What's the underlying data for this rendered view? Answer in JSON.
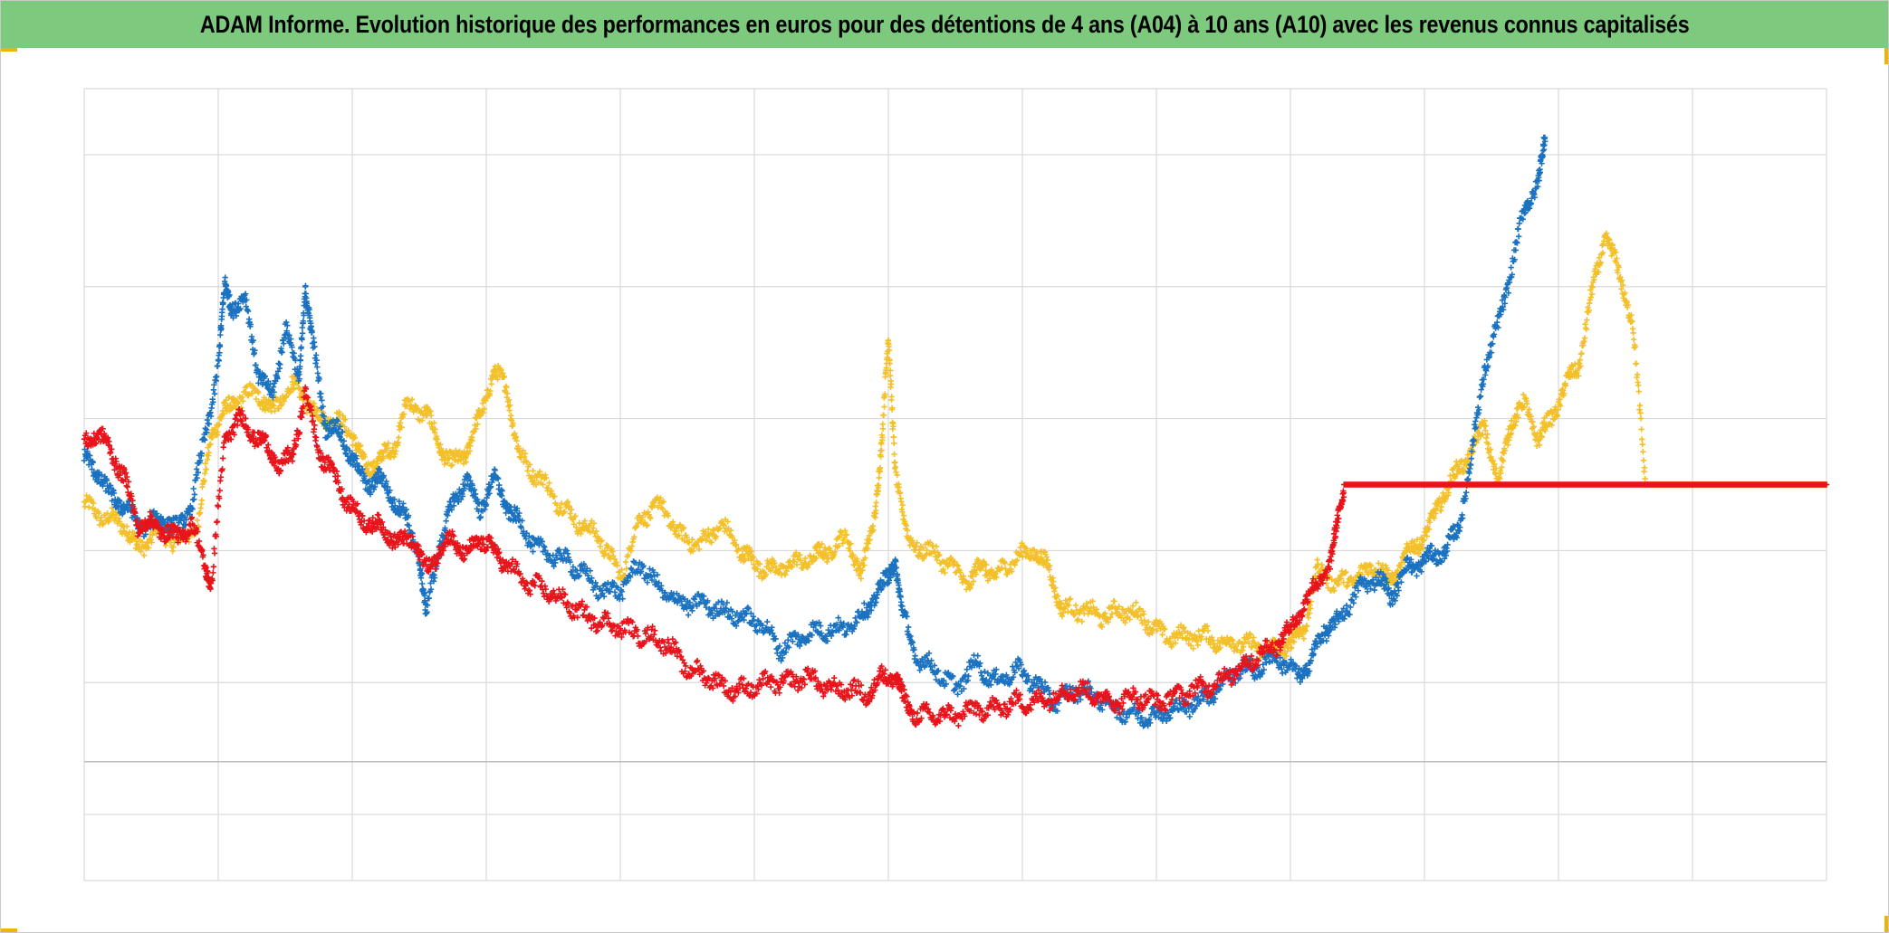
{
  "title": "ADAM Informe. Evolution historique des performances en euros pour des détentions de 4 ans (A04) à 10 ans (A10) avec les revenus connus capitalisés",
  "colors": {
    "title_background": "#7dc97d",
    "corner_accent": "#f2b400",
    "grid": "#d9d9d9"
  },
  "chart_data": {
    "type": "scatter",
    "marker": "plus",
    "title": "ADAM Informe. Evolution historique des performances en euros pour des détentions de 4 ans (A04) à 10 ans (A10) avec les revenus connus capitalisés",
    "xlabel": "",
    "ylabel": "",
    "xlim": [
      0,
      13
    ],
    "ylim": [
      -6,
      6
    ],
    "x_gridlines": 13,
    "y_gridlines": [
      -6,
      -5,
      -3,
      -1,
      1,
      3,
      5,
      6
    ],
    "zero_line": -4.2,
    "grid": true,
    "tick_labels_shown": false,
    "legend": "none",
    "series": [
      {
        "color": "#f4c02a",
        "points": [
          [
            0,
            -0.3
          ],
          [
            0.15,
            -0.5
          ],
          [
            0.3,
            -0.6
          ],
          [
            0.4,
            -1.0
          ],
          [
            0.55,
            -0.7
          ],
          [
            0.7,
            -0.9
          ],
          [
            0.85,
            -0.6
          ],
          [
            0.95,
            0.8
          ],
          [
            1.05,
            1.1
          ],
          [
            1.15,
            1.3
          ],
          [
            1.3,
            1.4
          ],
          [
            1.4,
            1.1
          ],
          [
            1.55,
            1.5
          ],
          [
            1.65,
            1.3
          ],
          [
            1.75,
            1.0
          ],
          [
            1.85,
            1.0
          ],
          [
            2.0,
            0.8
          ],
          [
            2.1,
            0.2
          ],
          [
            2.2,
            0.4
          ],
          [
            2.3,
            0.5
          ],
          [
            2.4,
            1.2
          ],
          [
            2.55,
            1.1
          ],
          [
            2.65,
            0.6
          ],
          [
            2.75,
            0.3
          ],
          [
            2.85,
            0.5
          ],
          [
            2.95,
            1.0
          ],
          [
            3.05,
            1.7
          ],
          [
            3.15,
            1.5
          ],
          [
            3.25,
            0.4
          ],
          [
            3.4,
            0.1
          ],
          [
            3.55,
            -0.3
          ],
          [
            3.7,
            -0.6
          ],
          [
            3.85,
            -0.8
          ],
          [
            4.0,
            -1.4
          ],
          [
            4.15,
            -0.5
          ],
          [
            4.3,
            -0.3
          ],
          [
            4.45,
            -0.8
          ],
          [
            4.6,
            -0.9
          ],
          [
            4.75,
            -0.6
          ],
          [
            4.9,
            -1.0
          ],
          [
            5.0,
            -1.2
          ],
          [
            5.15,
            -1.3
          ],
          [
            5.3,
            -1.2
          ],
          [
            5.45,
            -1.1
          ],
          [
            5.55,
            -1.0
          ],
          [
            5.7,
            -0.8
          ],
          [
            5.8,
            -1.4
          ],
          [
            5.9,
            -0.4
          ],
          [
            5.95,
            0.6
          ],
          [
            6.0,
            2.2
          ],
          [
            6.05,
            0.3
          ],
          [
            6.15,
            -0.9
          ],
          [
            6.3,
            -1.0
          ],
          [
            6.45,
            -1.2
          ],
          [
            6.6,
            -1.5
          ],
          [
            6.7,
            -1.2
          ],
          [
            6.8,
            -1.4
          ],
          [
            6.95,
            -1.1
          ],
          [
            7.1,
            -1.0
          ],
          [
            7.2,
            -1.3
          ],
          [
            7.3,
            -1.9
          ],
          [
            7.45,
            -1.9
          ],
          [
            7.6,
            -2.0
          ],
          [
            7.75,
            -1.9
          ],
          [
            7.9,
            -2.0
          ],
          [
            8.05,
            -2.3
          ],
          [
            8.2,
            -2.3
          ],
          [
            8.35,
            -2.3
          ],
          [
            8.5,
            -2.4
          ],
          [
            8.65,
            -2.4
          ],
          [
            8.8,
            -2.5
          ],
          [
            8.9,
            -2.5
          ],
          [
            9.0,
            -2.4
          ],
          [
            9.1,
            -2.2
          ],
          [
            9.2,
            -1.3
          ],
          [
            9.35,
            -1.5
          ],
          [
            9.5,
            -1.4
          ],
          [
            9.65,
            -1.2
          ],
          [
            9.75,
            -1.5
          ],
          [
            9.85,
            -1.1
          ],
          [
            9.95,
            -0.9
          ],
          [
            10.05,
            -0.6
          ],
          [
            10.15,
            -0.1
          ],
          [
            10.25,
            0.2
          ],
          [
            10.35,
            0.5
          ],
          [
            10.45,
            0.9
          ],
          [
            10.55,
            0.0
          ],
          [
            10.65,
            1.0
          ],
          [
            10.75,
            1.2
          ],
          [
            10.85,
            0.7
          ],
          [
            10.95,
            1.0
          ],
          [
            11.05,
            1.5
          ],
          [
            11.15,
            1.8
          ],
          [
            11.25,
            2.9
          ],
          [
            11.35,
            3.8
          ],
          [
            11.45,
            3.2
          ],
          [
            11.55,
            2.5
          ],
          [
            11.65,
            0.0
          ],
          [
            11.8,
            0.0
          ],
          [
            11.95,
            0.0
          ],
          [
            12.1,
            0.0
          ],
          [
            12.25,
            0.0
          ],
          [
            12.4,
            0.0
          ],
          [
            12.55,
            0.0
          ],
          [
            12.7,
            0.0
          ],
          [
            12.85,
            0.0
          ],
          [
            13.0,
            0.0
          ]
        ]
      },
      {
        "color": "#1a72c0",
        "points": [
          [
            0,
            0.4
          ],
          [
            0.1,
            0.2
          ],
          [
            0.2,
            -0.2
          ],
          [
            0.3,
            -0.3
          ],
          [
            0.4,
            -0.6
          ],
          [
            0.5,
            -0.6
          ],
          [
            0.6,
            -0.5
          ],
          [
            0.7,
            -0.7
          ],
          [
            0.8,
            -0.3
          ],
          [
            0.9,
            0.7
          ],
          [
            1.0,
            1.8
          ],
          [
            1.05,
            3.0
          ],
          [
            1.1,
            2.7
          ],
          [
            1.2,
            2.8
          ],
          [
            1.3,
            1.7
          ],
          [
            1.4,
            1.3
          ],
          [
            1.5,
            2.4
          ],
          [
            1.6,
            1.6
          ],
          [
            1.65,
            3.0
          ],
          [
            1.7,
            2.2
          ],
          [
            1.8,
            0.9
          ],
          [
            1.9,
            0.8
          ],
          [
            2.0,
            0.4
          ],
          [
            2.1,
            0.0
          ],
          [
            2.2,
            0.1
          ],
          [
            2.3,
            -0.2
          ],
          [
            2.4,
            -0.5
          ],
          [
            2.5,
            -1.1
          ],
          [
            2.55,
            -2.0
          ],
          [
            2.65,
            -0.9
          ],
          [
            2.75,
            -0.3
          ],
          [
            2.85,
            0.1
          ],
          [
            2.95,
            -0.4
          ],
          [
            3.05,
            0.1
          ],
          [
            3.15,
            -0.3
          ],
          [
            3.25,
            -0.6
          ],
          [
            3.4,
            -1.0
          ],
          [
            3.55,
            -1.1
          ],
          [
            3.7,
            -1.3
          ],
          [
            3.85,
            -1.6
          ],
          [
            4.0,
            -1.6
          ],
          [
            4.15,
            -1.2
          ],
          [
            4.3,
            -1.6
          ],
          [
            4.45,
            -1.8
          ],
          [
            4.6,
            -1.8
          ],
          [
            4.75,
            -1.9
          ],
          [
            4.9,
            -2.0
          ],
          [
            5.05,
            -2.1
          ],
          [
            5.2,
            -2.5
          ],
          [
            5.35,
            -2.3
          ],
          [
            5.5,
            -2.2
          ],
          [
            5.65,
            -2.2
          ],
          [
            5.8,
            -2.0
          ],
          [
            5.9,
            -1.7
          ],
          [
            6.0,
            -1.4
          ],
          [
            6.05,
            -1.1
          ],
          [
            6.1,
            -1.9
          ],
          [
            6.2,
            -2.6
          ],
          [
            6.35,
            -2.8
          ],
          [
            6.5,
            -3.1
          ],
          [
            6.65,
            -2.7
          ],
          [
            6.8,
            -3.0
          ],
          [
            6.95,
            -2.8
          ],
          [
            7.1,
            -3.0
          ],
          [
            7.25,
            -3.3
          ],
          [
            7.4,
            -3.1
          ],
          [
            7.55,
            -3.2
          ],
          [
            7.7,
            -3.4
          ],
          [
            7.85,
            -3.5
          ],
          [
            8.0,
            -3.5
          ],
          [
            8.15,
            -3.4
          ],
          [
            8.3,
            -3.3
          ],
          [
            8.45,
            -3.1
          ],
          [
            8.6,
            -2.8
          ],
          [
            8.75,
            -2.8
          ],
          [
            8.9,
            -2.6
          ],
          [
            9.05,
            -2.9
          ],
          [
            9.15,
            -2.7
          ],
          [
            9.25,
            -2.2
          ],
          [
            9.35,
            -2.1
          ],
          [
            9.5,
            -1.6
          ],
          [
            9.65,
            -1.4
          ],
          [
            9.75,
            -1.7
          ],
          [
            9.85,
            -1.3
          ],
          [
            9.95,
            -1.2
          ],
          [
            10.05,
            -1.1
          ],
          [
            10.15,
            -1.0
          ],
          [
            10.25,
            -0.7
          ],
          [
            10.35,
            0.4
          ],
          [
            10.45,
            1.8
          ],
          [
            10.55,
            2.4
          ],
          [
            10.65,
            3.3
          ],
          [
            10.75,
            4.2
          ],
          [
            10.85,
            4.6
          ],
          [
            10.9,
            5.2
          ]
        ]
      },
      {
        "color": "#e8141b",
        "points": [
          [
            0,
            0.6
          ],
          [
            0.1,
            0.8
          ],
          [
            0.2,
            0.5
          ],
          [
            0.3,
            0.1
          ],
          [
            0.4,
            -0.6
          ],
          [
            0.5,
            -0.6
          ],
          [
            0.6,
            -0.7
          ],
          [
            0.7,
            -0.8
          ],
          [
            0.8,
            -0.6
          ],
          [
            0.9,
            -1.2
          ],
          [
            0.95,
            -1.5
          ],
          [
            1.05,
            0.7
          ],
          [
            1.15,
            1.0
          ],
          [
            1.25,
            0.8
          ],
          [
            1.35,
            0.6
          ],
          [
            1.45,
            0.3
          ],
          [
            1.55,
            0.4
          ],
          [
            1.65,
            1.4
          ],
          [
            1.75,
            0.5
          ],
          [
            1.85,
            0.2
          ],
          [
            1.95,
            -0.2
          ],
          [
            2.05,
            -0.5
          ],
          [
            2.15,
            -0.6
          ],
          [
            2.25,
            -0.7
          ],
          [
            2.35,
            -0.9
          ],
          [
            2.45,
            -0.8
          ],
          [
            2.55,
            -1.3
          ],
          [
            2.65,
            -1.0
          ],
          [
            2.75,
            -0.8
          ],
          [
            2.85,
            -1.1
          ],
          [
            2.95,
            -0.8
          ],
          [
            3.05,
            -1.0
          ],
          [
            3.15,
            -1.2
          ],
          [
            3.3,
            -1.5
          ],
          [
            3.45,
            -1.6
          ],
          [
            3.6,
            -1.8
          ],
          [
            3.75,
            -2.0
          ],
          [
            3.9,
            -2.1
          ],
          [
            4.05,
            -2.2
          ],
          [
            4.2,
            -2.3
          ],
          [
            4.35,
            -2.4
          ],
          [
            4.5,
            -2.8
          ],
          [
            4.65,
            -2.9
          ],
          [
            4.8,
            -3.1
          ],
          [
            4.95,
            -3.1
          ],
          [
            5.1,
            -3.0
          ],
          [
            5.25,
            -3.0
          ],
          [
            5.4,
            -2.9
          ],
          [
            5.55,
            -3.1
          ],
          [
            5.7,
            -3.1
          ],
          [
            5.85,
            -3.2
          ],
          [
            5.95,
            -2.9
          ],
          [
            6.05,
            -2.9
          ],
          [
            6.1,
            -3.2
          ],
          [
            6.2,
            -3.5
          ],
          [
            6.35,
            -3.5
          ],
          [
            6.5,
            -3.5
          ],
          [
            6.65,
            -3.4
          ],
          [
            6.8,
            -3.4
          ],
          [
            6.95,
            -3.3
          ],
          [
            7.1,
            -3.3
          ],
          [
            7.25,
            -3.2
          ],
          [
            7.4,
            -3.1
          ],
          [
            7.55,
            -3.2
          ],
          [
            7.7,
            -3.3
          ],
          [
            7.85,
            -3.2
          ],
          [
            8.0,
            -3.3
          ],
          [
            8.15,
            -3.2
          ],
          [
            8.3,
            -3.1
          ],
          [
            8.45,
            -3.0
          ],
          [
            8.6,
            -2.8
          ],
          [
            8.75,
            -2.6
          ],
          [
            8.9,
            -2.4
          ],
          [
            9.0,
            -2.2
          ],
          [
            9.1,
            -1.8
          ],
          [
            9.2,
            -1.5
          ],
          [
            9.3,
            -1.2
          ],
          [
            9.35,
            -0.6
          ],
          [
            9.4,
            0.0
          ],
          [
            9.6,
            0.0
          ],
          [
            9.8,
            0.0
          ],
          [
            10.0,
            0.0
          ],
          [
            10.2,
            0.0
          ],
          [
            10.4,
            0.0
          ],
          [
            10.6,
            0.0
          ],
          [
            10.8,
            0.0
          ],
          [
            11.0,
            0.0
          ],
          [
            11.2,
            0.0
          ],
          [
            11.4,
            0.0
          ],
          [
            11.6,
            0.0
          ],
          [
            11.8,
            0.0
          ],
          [
            12.0,
            0.0
          ],
          [
            12.2,
            0.0
          ],
          [
            12.4,
            0.0
          ],
          [
            12.6,
            0.0
          ],
          [
            12.8,
            0.0
          ],
          [
            13.0,
            0.0
          ]
        ]
      }
    ]
  }
}
